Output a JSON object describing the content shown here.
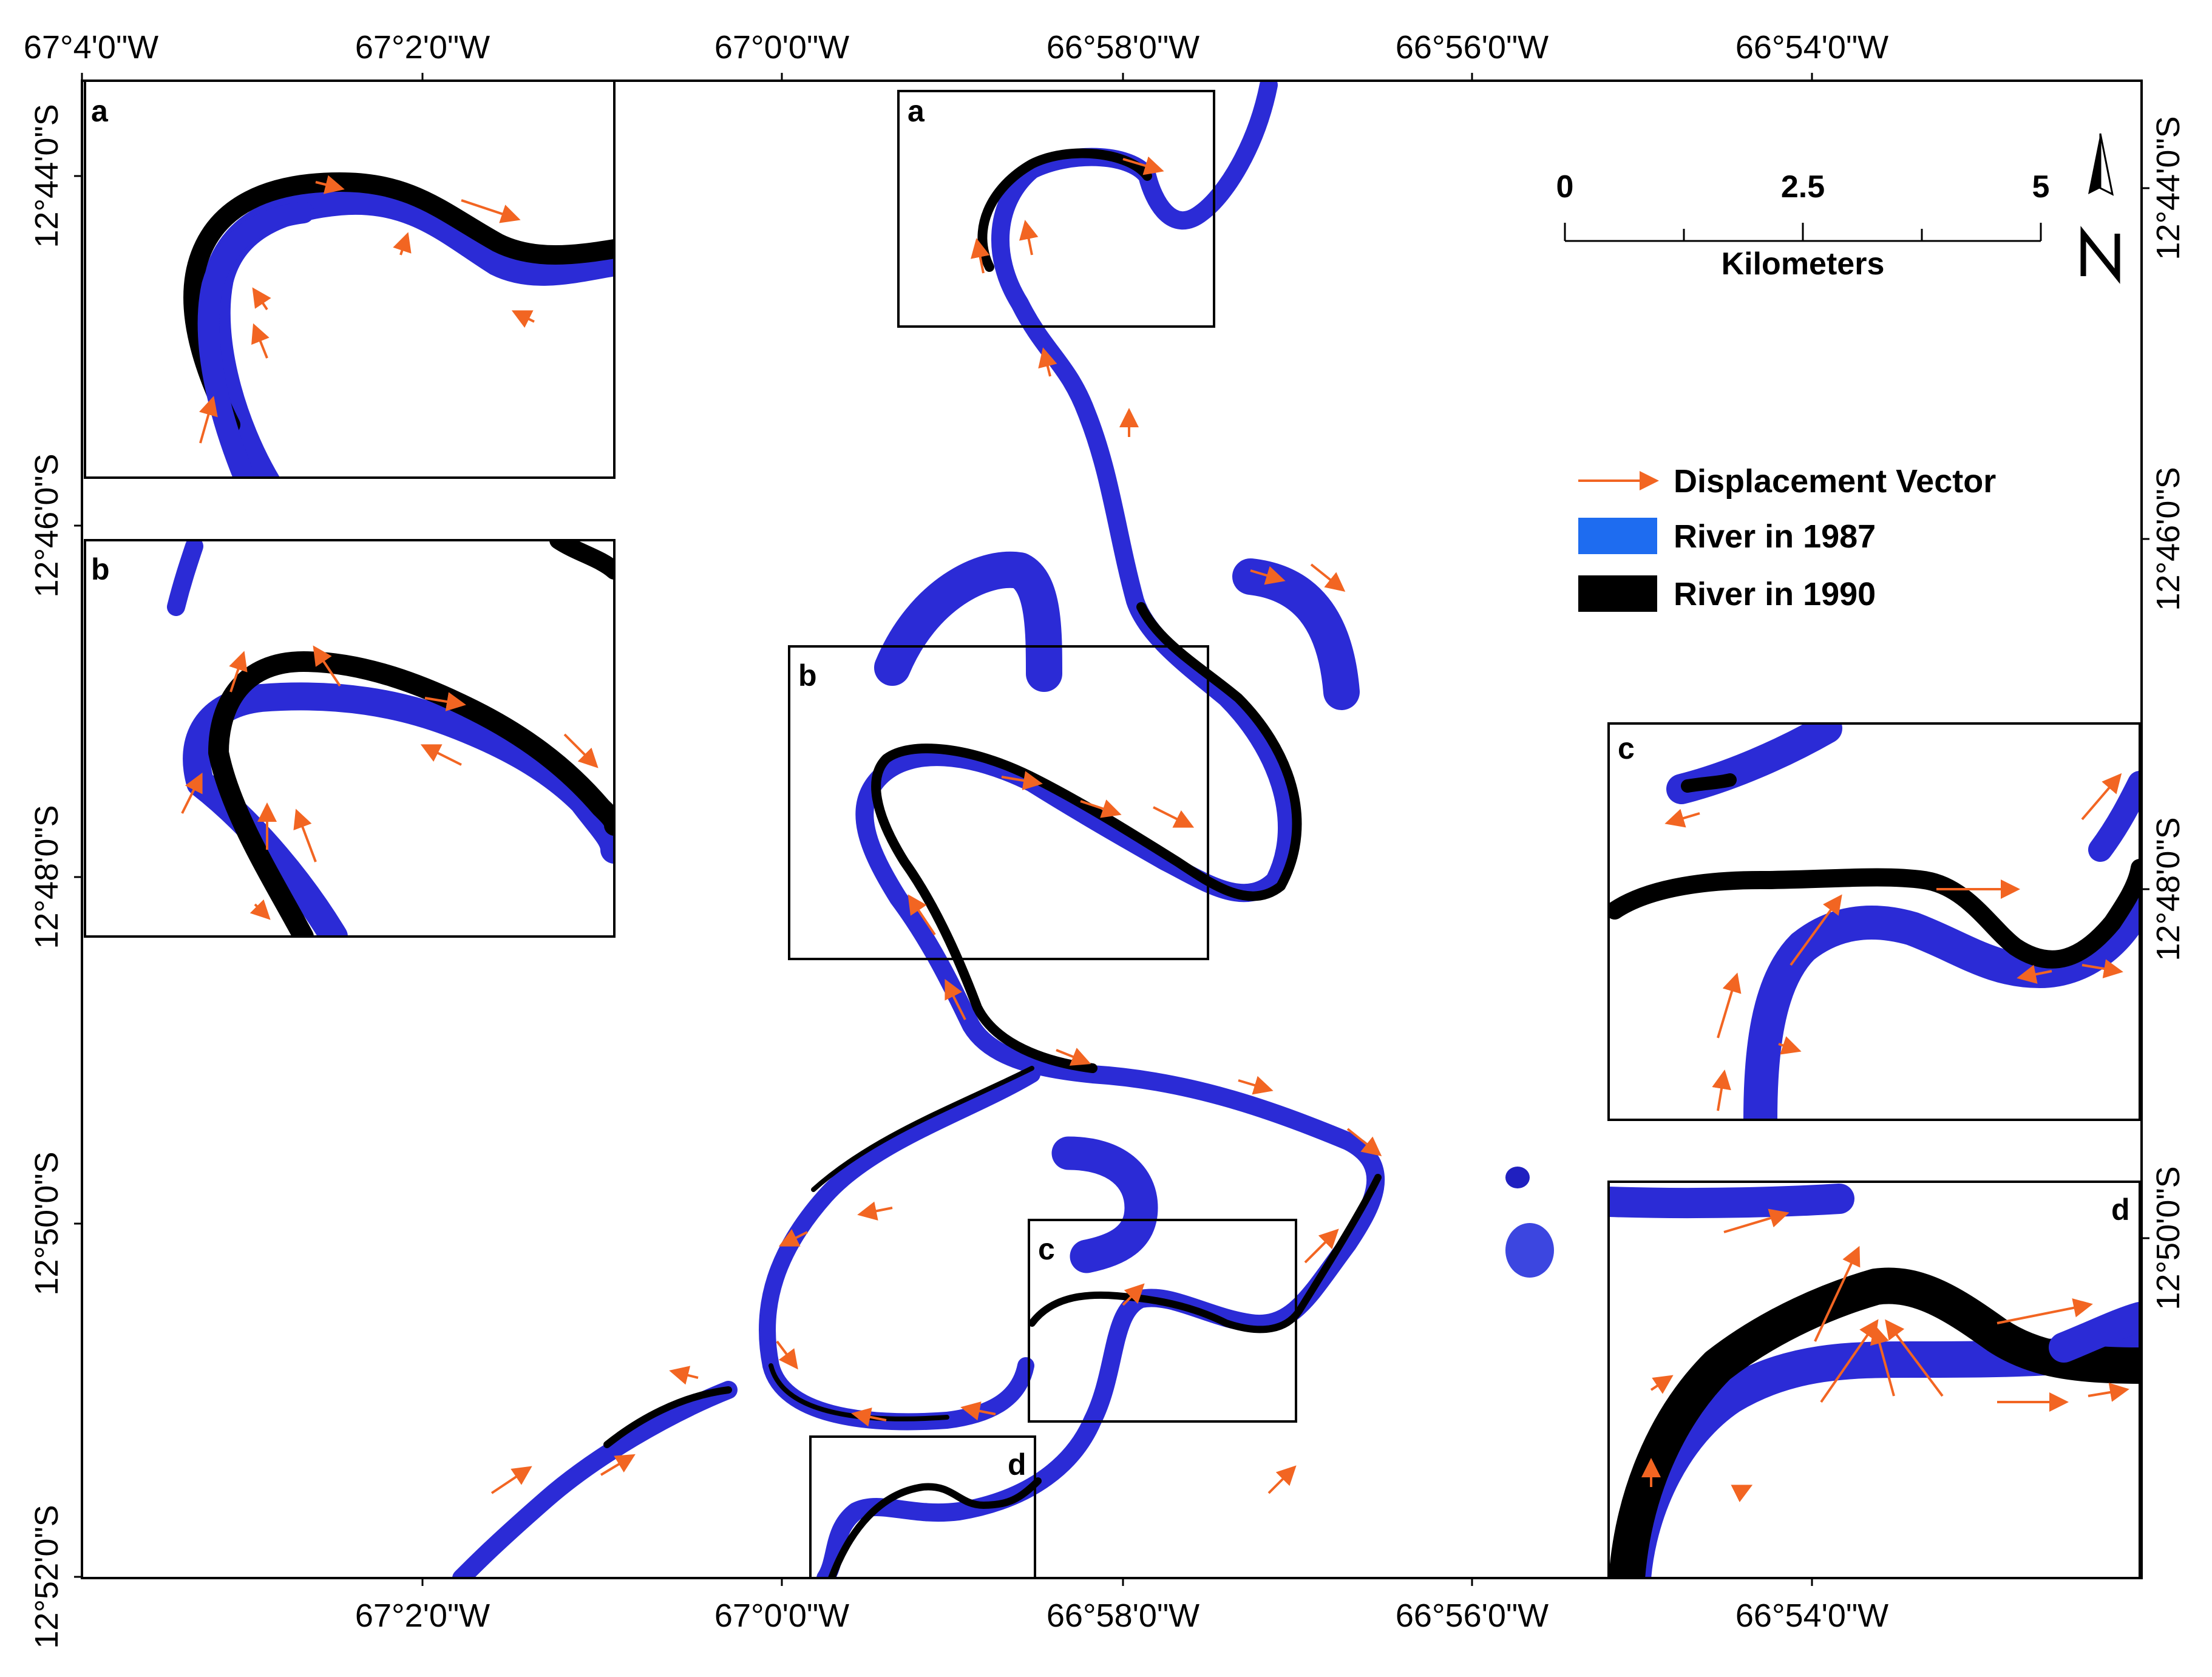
{
  "map": {
    "top_ticks": [
      "67°4'0\"W",
      "67°2'0\"W",
      "67°0'0\"W",
      "66°58'0\"W",
      "66°56'0\"W",
      "66°54'0\"W"
    ],
    "bottom_ticks": [
      "67°2'0\"W",
      "67°0'0\"W",
      "66°58'0\"W",
      "66°56'0\"W",
      "66°54'0\"W"
    ],
    "left_ticks": [
      "12°44'0\"S",
      "12°46'0\"S",
      "12°48'0\"S",
      "12°50'0\"S",
      "12°52'0\"S"
    ],
    "right_ticks": [
      "12°44'0\"S",
      "12°46'0\"S",
      "12°48'0\"S",
      "12°50'0\"S"
    ],
    "inset_labels": [
      "a",
      "b",
      "c",
      "d"
    ],
    "box_labels": [
      "a",
      "b",
      "c",
      "d"
    ]
  },
  "scale_bar": {
    "labels": [
      "0",
      "2.5",
      "5"
    ],
    "unit": "Kilometers"
  },
  "legend": {
    "items": [
      {
        "label": "Displacement Vector",
        "color": "#f26522",
        "kind": "arrow"
      },
      {
        "label": "River in 1987",
        "color": "#1e6cf0",
        "kind": "box"
      },
      {
        "label": "River in 1990",
        "color": "#000000",
        "kind": "box"
      }
    ]
  },
  "north_arrow": {
    "label": "N"
  },
  "colors": {
    "river_1987": "#2b2bd6",
    "river_1990": "#000000",
    "vector": "#f26522"
  }
}
